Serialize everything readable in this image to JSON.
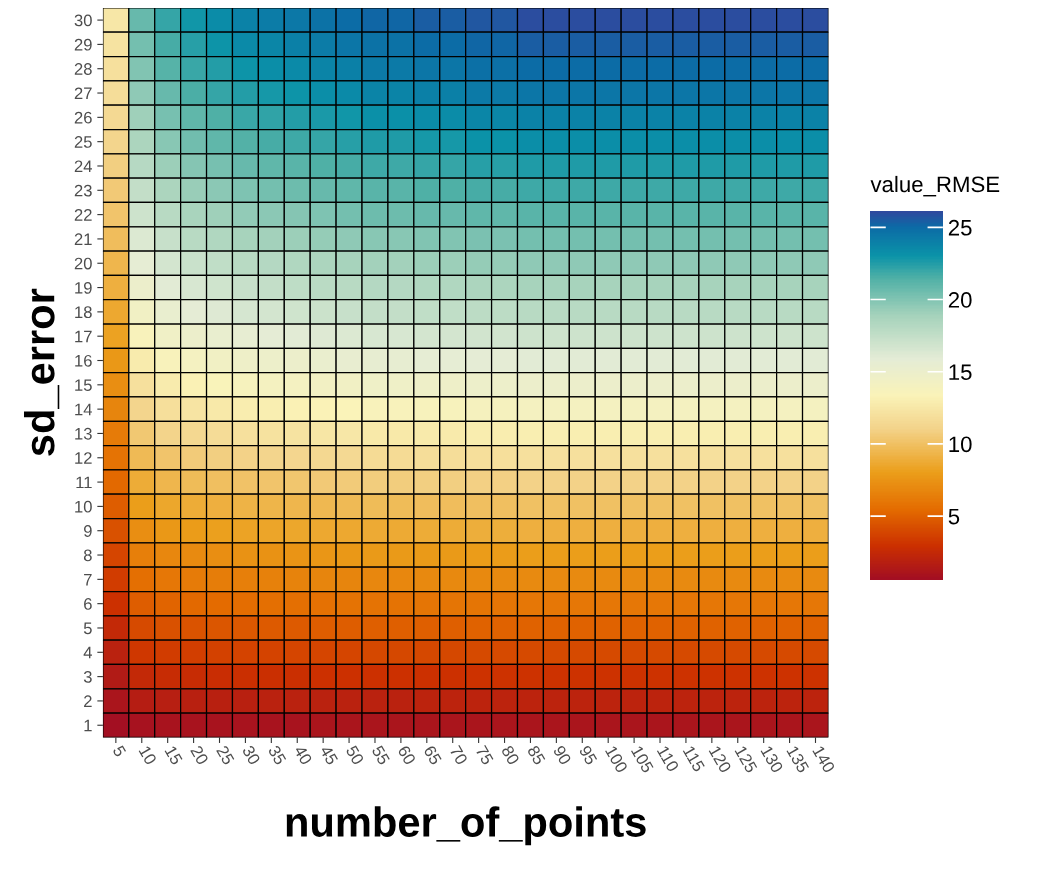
{
  "chart_data": {
    "type": "heatmap",
    "xlabel": "number_of_points",
    "ylabel": "sd_error",
    "clabel": "value_RMSE",
    "categories": [
      "5",
      "10",
      "15",
      "20",
      "25",
      "30",
      "35",
      "40",
      "45",
      "50",
      "55",
      "60",
      "65",
      "70",
      "75",
      "80",
      "85",
      "90",
      "95",
      "100",
      "105",
      "110",
      "115",
      "120",
      "125",
      "130",
      "135",
      "140"
    ],
    "y_categories": [
      "30",
      "29",
      "28",
      "27",
      "26",
      "25",
      "24",
      "23",
      "22",
      "21",
      "20",
      "19",
      "18",
      "17",
      "16",
      "15",
      "14",
      "13",
      "12",
      "11",
      "10",
      "9",
      "8",
      "7",
      "6",
      "5",
      "4",
      "3",
      "2",
      "1"
    ],
    "clim": [
      0.6,
      26.1
    ],
    "cticks": [
      5,
      10,
      15,
      20,
      25
    ],
    "cells": [
      [
        12.5,
        20.8,
        22.1,
        22.9,
        23.4,
        23.9,
        24.2,
        24.4,
        24.7,
        25.0,
        25.2,
        25.2,
        25.5,
        25.5,
        25.7,
        25.7,
        26.0,
        26.0,
        26.0,
        26.0,
        26.0,
        26.0,
        26.0,
        26.0,
        26.0,
        26.0,
        26.0,
        26.0
      ],
      [
        12.2,
        20.4,
        21.7,
        22.4,
        23.0,
        23.5,
        23.7,
        24.0,
        24.2,
        24.5,
        24.7,
        24.7,
        25.0,
        25.0,
        25.2,
        25.2,
        25.5,
        25.5,
        25.5,
        25.5,
        25.5,
        25.5,
        25.5,
        25.5,
        25.5,
        25.5,
        25.5,
        25.5
      ],
      [
        12.0,
        20.0,
        21.3,
        22.0,
        22.5,
        23.0,
        23.3,
        23.5,
        23.8,
        24.0,
        24.3,
        24.3,
        24.5,
        24.5,
        24.8,
        24.8,
        25.0,
        25.0,
        25.0,
        25.0,
        25.0,
        25.0,
        25.0,
        25.0,
        25.0,
        25.0,
        25.0,
        25.0
      ],
      [
        11.8,
        19.6,
        20.8,
        21.6,
        22.1,
        22.5,
        22.8,
        23.0,
        23.3,
        23.5,
        23.8,
        23.8,
        24.0,
        24.0,
        24.3,
        24.3,
        24.5,
        24.5,
        24.5,
        24.5,
        24.5,
        24.5,
        24.5,
        24.5,
        24.5,
        24.5,
        24.5,
        24.5
      ],
      [
        11.5,
        19.1,
        20.3,
        21.0,
        21.5,
        22.0,
        22.2,
        22.5,
        22.7,
        22.9,
        23.2,
        23.2,
        23.4,
        23.4,
        23.7,
        23.7,
        23.9,
        23.9,
        23.9,
        23.9,
        23.9,
        23.9,
        23.9,
        23.9,
        23.9,
        23.9,
        23.9,
        23.9
      ],
      [
        11.2,
        18.6,
        19.8,
        20.5,
        21.0,
        21.4,
        21.7,
        21.9,
        22.1,
        22.4,
        22.6,
        22.6,
        22.8,
        22.8,
        23.1,
        23.1,
        23.3,
        23.3,
        23.3,
        23.3,
        23.3,
        23.3,
        23.3,
        23.3,
        23.3,
        23.3,
        23.3,
        23.3
      ],
      [
        10.8,
        18.1,
        19.2,
        19.9,
        20.3,
        20.8,
        21.0,
        21.2,
        21.5,
        21.7,
        21.9,
        21.9,
        22.1,
        22.1,
        22.4,
        22.4,
        22.6,
        22.6,
        22.6,
        22.6,
        22.6,
        22.6,
        22.6,
        22.6,
        22.6,
        22.6,
        22.6,
        22.6
      ],
      [
        10.5,
        17.5,
        18.6,
        19.3,
        19.7,
        20.1,
        20.4,
        20.6,
        20.8,
        21.0,
        21.2,
        21.2,
        21.5,
        21.5,
        21.7,
        21.7,
        21.9,
        21.9,
        21.9,
        21.9,
        21.9,
        21.9,
        21.9,
        21.9,
        21.9,
        21.9,
        21.9,
        21.9
      ],
      [
        10.2,
        17.0,
        18.0,
        18.7,
        19.1,
        19.5,
        19.7,
        19.9,
        20.1,
        20.4,
        20.6,
        20.6,
        20.8,
        20.8,
        21.0,
        21.0,
        21.2,
        21.2,
        21.2,
        21.2,
        21.2,
        21.2,
        21.2,
        21.2,
        21.2,
        21.2,
        21.2,
        21.2
      ],
      [
        9.8,
        16.3,
        17.3,
        18.0,
        18.4,
        18.8,
        19.0,
        19.2,
        19.4,
        19.6,
        19.8,
        19.8,
        20.0,
        20.0,
        20.2,
        20.2,
        20.4,
        20.4,
        20.4,
        20.4,
        20.4,
        20.4,
        20.4,
        20.4,
        20.4,
        20.4,
        20.4,
        20.4
      ],
      [
        9.4,
        15.7,
        16.7,
        17.2,
        17.6,
        18.0,
        18.2,
        18.4,
        18.6,
        18.8,
        19.0,
        19.0,
        19.2,
        19.2,
        19.4,
        19.4,
        19.6,
        19.6,
        19.6,
        19.6,
        19.6,
        19.6,
        19.6,
        19.6,
        19.6,
        19.6,
        19.6,
        19.6
      ],
      [
        9.0,
        15.0,
        16.0,
        16.5,
        16.9,
        17.3,
        17.5,
        17.7,
        17.9,
        18.0,
        18.2,
        18.2,
        18.4,
        18.4,
        18.6,
        18.6,
        18.8,
        18.8,
        18.8,
        18.8,
        18.8,
        18.8,
        18.8,
        18.8,
        18.8,
        18.8,
        18.8,
        18.8
      ],
      [
        8.6,
        14.4,
        15.3,
        15.8,
        16.2,
        16.6,
        16.7,
        16.9,
        17.1,
        17.3,
        17.5,
        17.5,
        17.6,
        17.6,
        17.8,
        17.8,
        18.0,
        18.0,
        18.0,
        18.0,
        18.0,
        18.0,
        18.0,
        18.0,
        18.0,
        18.0,
        18.0,
        18.0
      ],
      [
        8.2,
        13.6,
        14.5,
        15.0,
        15.3,
        15.6,
        15.8,
        16.0,
        16.2,
        16.3,
        16.5,
        16.5,
        16.7,
        16.7,
        16.8,
        16.8,
        17.0,
        17.0,
        17.0,
        17.0,
        17.0,
        17.0,
        17.0,
        17.0,
        17.0,
        17.0,
        17.0,
        17.0
      ],
      [
        7.7,
        12.8,
        13.6,
        14.1,
        14.4,
        14.7,
        14.9,
        15.0,
        15.2,
        15.4,
        15.5,
        15.5,
        15.7,
        15.7,
        15.8,
        15.8,
        16.0,
        16.0,
        16.0,
        16.0,
        16.0,
        16.0,
        16.0,
        16.0,
        16.0,
        16.0,
        16.0,
        16.0
      ],
      [
        7.2,
        12.0,
        12.8,
        13.2,
        13.5,
        13.8,
        14.0,
        14.1,
        14.3,
        14.4,
        14.6,
        14.6,
        14.7,
        14.7,
        14.9,
        14.9,
        15.0,
        15.0,
        15.0,
        15.0,
        15.0,
        15.0,
        15.0,
        15.0,
        15.0,
        15.0,
        15.0,
        15.0
      ],
      [
        6.7,
        11.2,
        11.9,
        12.3,
        12.6,
        12.9,
        13.0,
        13.2,
        13.3,
        13.4,
        13.6,
        13.6,
        13.7,
        13.7,
        13.9,
        13.9,
        14.0,
        14.0,
        14.0,
        14.0,
        14.0,
        14.0,
        14.0,
        14.0,
        14.0,
        14.0,
        14.0,
        14.0
      ],
      [
        6.2,
        10.4,
        11.1,
        11.4,
        11.7,
        12.0,
        12.1,
        12.2,
        12.4,
        12.5,
        12.6,
        12.6,
        12.7,
        12.7,
        12.9,
        12.9,
        13.0,
        13.0,
        13.0,
        13.0,
        13.0,
        13.0,
        13.0,
        13.0,
        13.0,
        13.0,
        13.0,
        13.0
      ],
      [
        5.8,
        9.6,
        10.2,
        10.6,
        10.8,
        11.0,
        11.2,
        11.3,
        11.4,
        11.5,
        11.6,
        11.6,
        11.8,
        11.8,
        11.9,
        11.9,
        12.0,
        12.0,
        12.0,
        12.0,
        12.0,
        12.0,
        12.0,
        12.0,
        12.0,
        12.0,
        12.0,
        12.0
      ],
      [
        5.3,
        8.8,
        9.4,
        9.7,
        9.9,
        10.1,
        10.2,
        10.3,
        10.5,
        10.6,
        10.7,
        10.7,
        10.8,
        10.8,
        10.9,
        10.9,
        11.0,
        11.0,
        11.0,
        11.0,
        11.0,
        11.0,
        11.0,
        11.0,
        11.0,
        11.0,
        11.0,
        11.0
      ],
      [
        4.8,
        8.0,
        8.5,
        8.8,
        9.0,
        9.2,
        9.3,
        9.4,
        9.5,
        9.6,
        9.7,
        9.7,
        9.8,
        9.8,
        9.9,
        9.9,
        10.0,
        10.0,
        10.0,
        10.0,
        10.0,
        10.0,
        10.0,
        10.0,
        10.0,
        10.0,
        10.0,
        10.0
      ],
      [
        4.3,
        7.2,
        7.7,
        7.9,
        8.1,
        8.3,
        8.4,
        8.5,
        8.6,
        8.6,
        8.7,
        8.7,
        8.8,
        8.8,
        8.9,
        8.9,
        9.0,
        9.0,
        9.0,
        9.0,
        9.0,
        9.0,
        9.0,
        9.0,
        9.0,
        9.0,
        9.0,
        9.0
      ],
      [
        3.8,
        6.4,
        6.8,
        7.0,
        7.2,
        7.4,
        7.4,
        7.5,
        7.6,
        7.7,
        7.8,
        7.8,
        7.8,
        7.8,
        7.9,
        7.9,
        8.0,
        8.0,
        8.0,
        8.0,
        8.0,
        8.0,
        8.0,
        8.0,
        8.0,
        8.0,
        8.0,
        8.0
      ],
      [
        3.4,
        5.6,
        6.0,
        6.2,
        6.3,
        6.4,
        6.5,
        6.6,
        6.7,
        6.7,
        6.8,
        6.8,
        6.9,
        6.9,
        6.9,
        6.9,
        7.0,
        7.0,
        7.0,
        7.0,
        7.0,
        7.0,
        7.0,
        7.0,
        7.0,
        7.0,
        7.0,
        7.0
      ],
      [
        2.9,
        4.8,
        5.1,
        5.3,
        5.4,
        5.5,
        5.6,
        5.6,
        5.7,
        5.8,
        5.8,
        5.8,
        5.9,
        5.9,
        5.9,
        5.9,
        6.0,
        6.0,
        6.0,
        6.0,
        6.0,
        6.0,
        6.0,
        6.0,
        6.0,
        6.0,
        6.0,
        6.0
      ],
      [
        2.4,
        4.0,
        4.3,
        4.4,
        4.5,
        4.6,
        4.7,
        4.7,
        4.8,
        4.8,
        4.9,
        4.9,
        4.9,
        4.9,
        5.0,
        5.0,
        5.0,
        5.0,
        5.0,
        5.0,
        5.0,
        5.0,
        5.0,
        5.0,
        5.0,
        5.0,
        5.0,
        5.0
      ],
      [
        1.9,
        3.2,
        3.4,
        3.5,
        3.6,
        3.7,
        3.7,
        3.8,
        3.8,
        3.8,
        3.9,
        3.9,
        3.9,
        3.9,
        4.0,
        4.0,
        4.0,
        4.0,
        4.0,
        4.0,
        4.0,
        4.0,
        4.0,
        4.0,
        4.0,
        4.0,
        4.0,
        4.0
      ],
      [
        1.4,
        2.4,
        2.6,
        2.6,
        2.7,
        2.8,
        2.8,
        2.8,
        2.9,
        2.9,
        2.9,
        2.9,
        2.9,
        2.9,
        3.0,
        3.0,
        3.0,
        3.0,
        3.0,
        3.0,
        3.0,
        3.0,
        3.0,
        3.0,
        3.0,
        3.0,
        3.0,
        3.0
      ],
      [
        1.0,
        1.6,
        1.7,
        1.8,
        1.8,
        1.8,
        1.9,
        1.9,
        1.9,
        1.9,
        1.9,
        1.9,
        2.0,
        2.0,
        2.0,
        2.0,
        2.0,
        2.0,
        2.0,
        2.0,
        2.0,
        2.0,
        2.0,
        2.0,
        2.0,
        2.0,
        2.0,
        2.0
      ],
      [
        0.6,
        0.8,
        0.9,
        0.9,
        0.9,
        0.9,
        0.9,
        0.9,
        1.0,
        1.0,
        1.0,
        1.0,
        1.0,
        1.0,
        1.0,
        1.0,
        1.0,
        1.0,
        1.0,
        1.0,
        1.0,
        1.0,
        1.0,
        1.0,
        1.0,
        1.0,
        1.0,
        1.0
      ]
    ]
  }
}
